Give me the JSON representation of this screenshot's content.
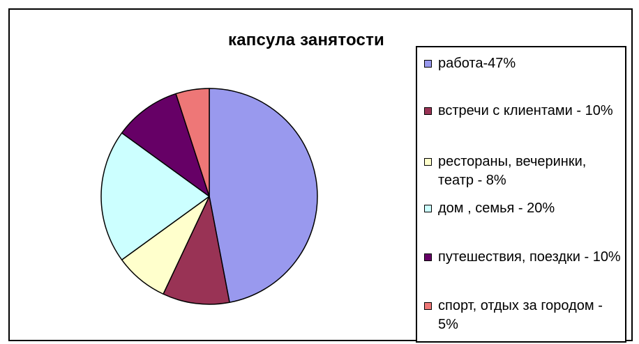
{
  "chart_data": {
    "type": "pie",
    "title": "капсула занятости",
    "legend_position": "right",
    "slices": [
      {
        "label": "работа-47%",
        "value": 47,
        "color": "#9999ee"
      },
      {
        "label": "встречи с клиентами - 10%",
        "value": 10,
        "color": "#993355"
      },
      {
        "label": "рестораны, вечеринки, театр - 8%",
        "value": 8,
        "color": "#ffffcc"
      },
      {
        "label": "дом , семья - 20%",
        "value": 20,
        "color": "#ccffff"
      },
      {
        "label": "путешествия, поездки - 10%",
        "value": 10,
        "color": "#660066"
      },
      {
        "label": "спорт, отдых за городом - 5%",
        "value": 5,
        "color": "#ee7777"
      }
    ]
  }
}
